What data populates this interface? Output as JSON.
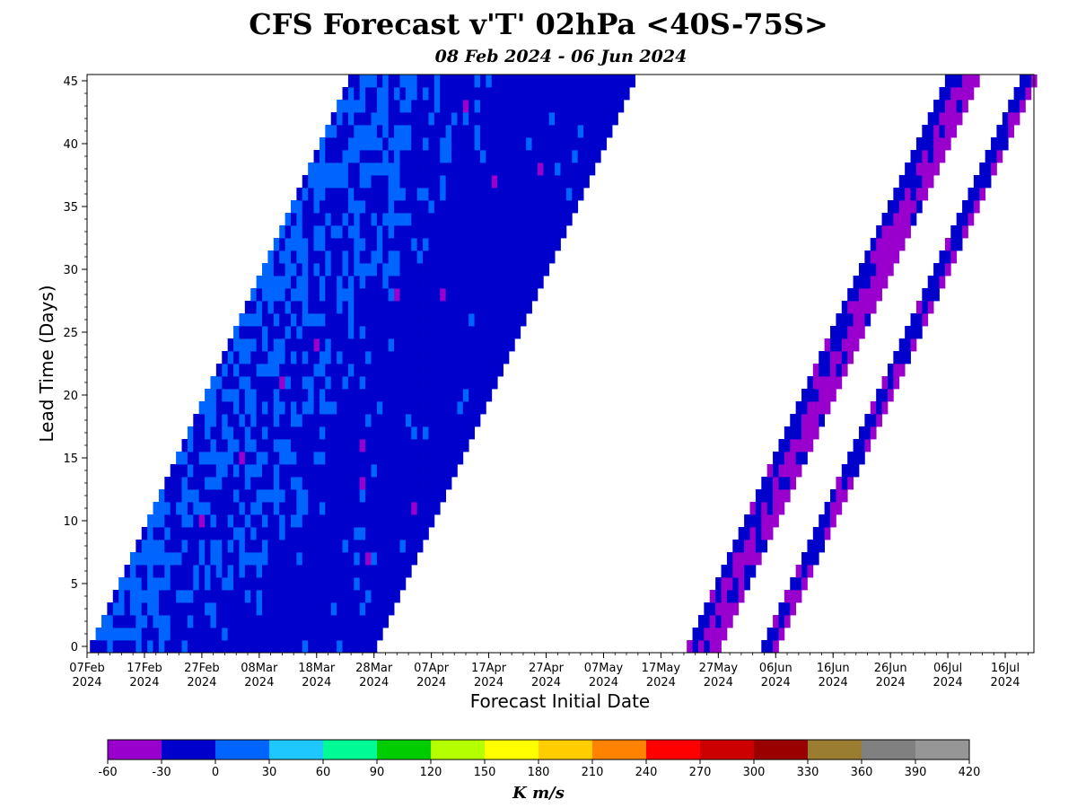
{
  "chart_data": {
    "type": "heatmap",
    "title": "CFS Forecast v'T' 02hPa <40S-75S>",
    "subtitle": "08 Feb 2024 - 06 Jun 2024",
    "xlabel": "Forecast Initial Date",
    "ylabel": "Lead Time (Days)",
    "x_range": [
      "2024-02-07",
      "2024-07-21"
    ],
    "ylim": [
      -0.5,
      45.5
    ],
    "x_ticks": [
      "07Feb 2024",
      "17Feb 2024",
      "27Feb 2024",
      "08Mar 2024",
      "18Mar 2024",
      "28Mar 2024",
      "07Apr 2024",
      "17Apr 2024",
      "27Apr 2024",
      "07May 2024",
      "17May 2024",
      "27May 2024",
      "06Jun 2024",
      "16Jun 2024",
      "26Jun 2024",
      "06Jul 2024",
      "16Jul 2024"
    ],
    "y_ticks": [
      "0",
      "5",
      "10",
      "15",
      "20",
      "25",
      "30",
      "35",
      "40",
      "45"
    ],
    "init_date_range": [
      "2024-02-08",
      "2024-06-06"
    ],
    "lead_days": [
      0,
      45
    ],
    "bands": [
      {
        "name": "continuous forecast block",
        "init_start": "2024-02-08",
        "init_end": "2024-03-28",
        "dominant_value_range": [
          -30,
          0
        ],
        "secondary_value_range": [
          0,
          30
        ]
      },
      {
        "name": "verification band early June",
        "valid_date_start": "2024-05-22",
        "valid_date_end": "2024-05-27",
        "value_ranges": [
          [
            -60,
            -30
          ],
          [
            -30,
            0
          ]
        ]
      },
      {
        "name": "verification band mid June",
        "valid_date_start": "2024-06-04",
        "valid_date_end": "2024-06-09",
        "value_ranges": [
          [
            -60,
            -30
          ],
          [
            -30,
            0
          ]
        ]
      }
    ],
    "colorbar": {
      "label": "K m/s",
      "boundaries": [
        -60,
        -30,
        0,
        30,
        60,
        90,
        120,
        150,
        180,
        210,
        240,
        270,
        300,
        330,
        360,
        390,
        420
      ],
      "colors": [
        "#9a00cd",
        "#0000cd",
        "#0064ff",
        "#1ec8ff",
        "#00fa96",
        "#00cd00",
        "#b4ff00",
        "#ffff00",
        "#ffcd00",
        "#ff8200",
        "#ff0000",
        "#cd0000",
        "#9b0000",
        "#9b7d32",
        "#808080",
        "#969696"
      ]
    }
  }
}
